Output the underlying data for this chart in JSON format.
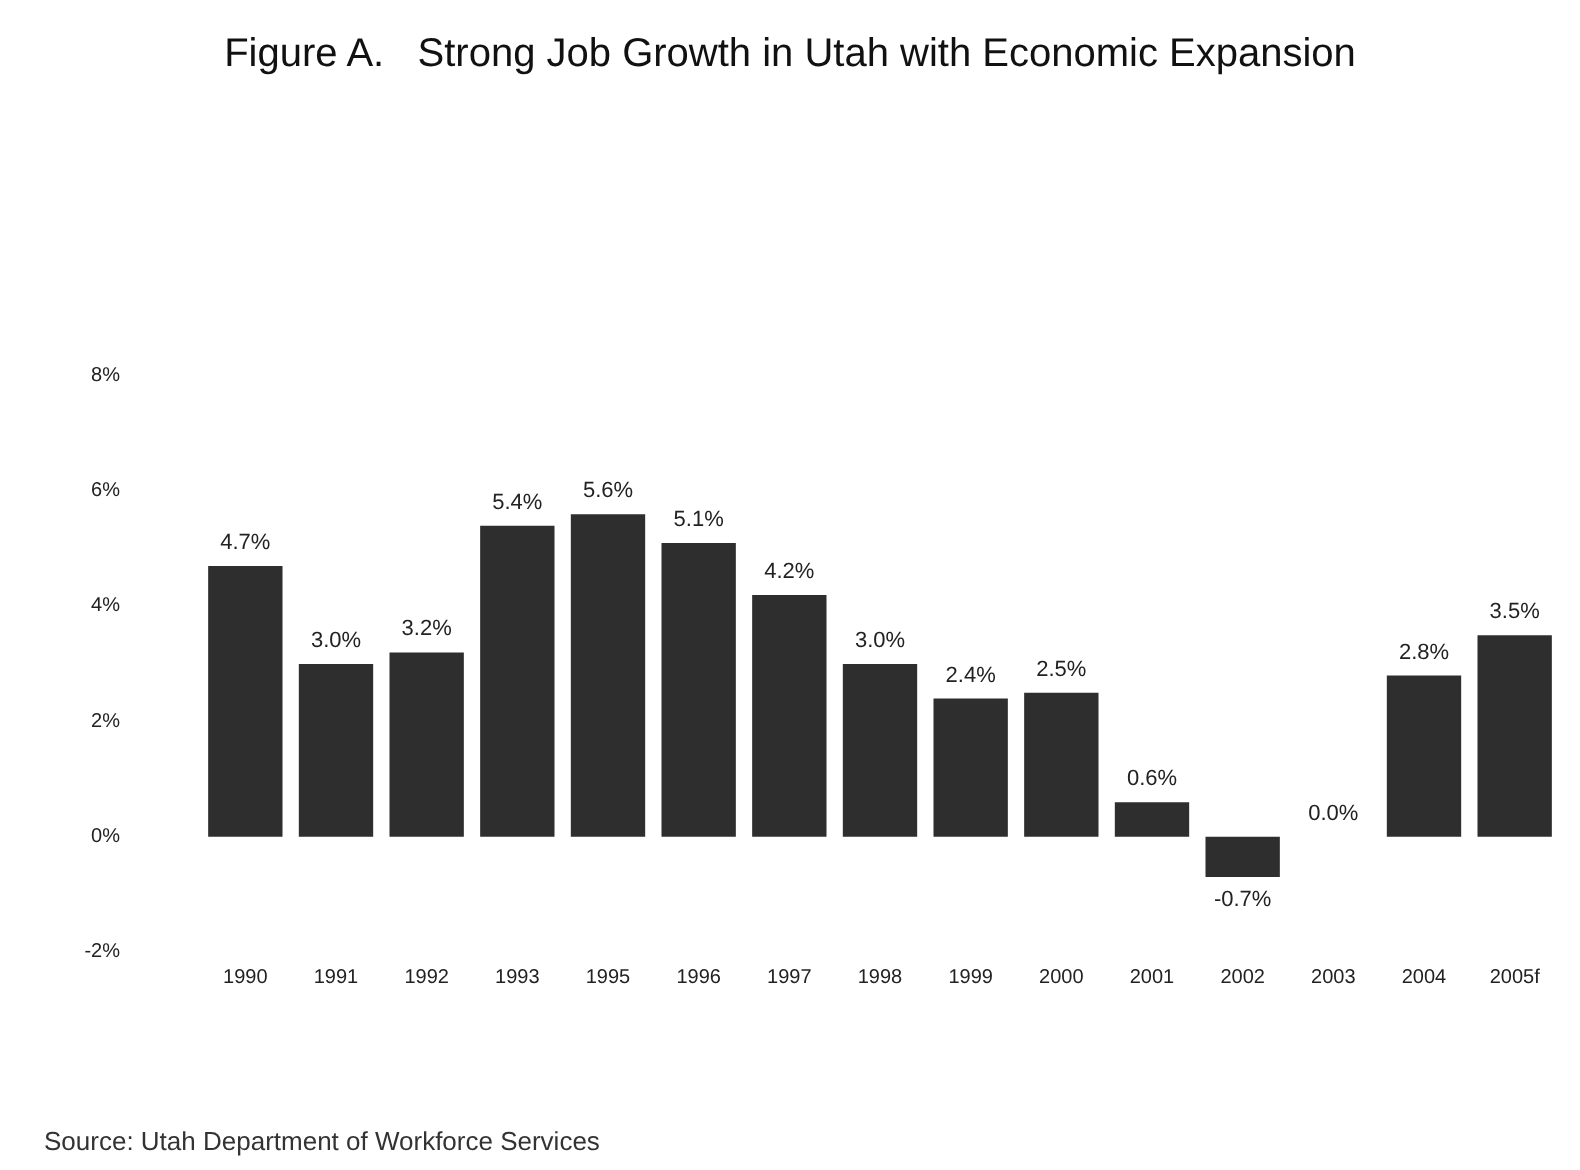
{
  "chart_data": {
    "type": "bar",
    "title": "Figure A.   Strong Job Growth in Utah with Economic Expansion",
    "categories": [
      "1990",
      "1991",
      "1992",
      "1993",
      "1995",
      "1996",
      "1997",
      "1998",
      "1999",
      "2000",
      "2001",
      "2002",
      "2003",
      "2004",
      "2005f"
    ],
    "values": [
      4.7,
      3.0,
      3.2,
      5.4,
      5.6,
      5.1,
      4.2,
      3.0,
      2.4,
      2.5,
      0.6,
      -0.7,
      0.0,
      2.8,
      3.5
    ],
    "value_labels": [
      "4.7%",
      "3.0%",
      "3.2%",
      "5.4%",
      "5.6%",
      "5.1%",
      "4.2%",
      "3.0%",
      "2.4%",
      "2.5%",
      "0.6%",
      "-0.7%",
      "0.0%",
      "2.8%",
      "3.5%"
    ],
    "color": "#2e2e2e",
    "ylim": [
      -2,
      8
    ],
    "yticks": [
      {
        "value": -2,
        "label": "-2%"
      },
      {
        "value": 0,
        "label": "0%"
      },
      {
        "value": 2,
        "label": "2%"
      },
      {
        "value": 4,
        "label": "4%"
      },
      {
        "value": 6,
        "label": "6%"
      },
      {
        "value": 8,
        "label": "8%"
      }
    ],
    "grid": false,
    "annotations": [
      "Source: Utah Department of Workforce Services"
    ]
  }
}
